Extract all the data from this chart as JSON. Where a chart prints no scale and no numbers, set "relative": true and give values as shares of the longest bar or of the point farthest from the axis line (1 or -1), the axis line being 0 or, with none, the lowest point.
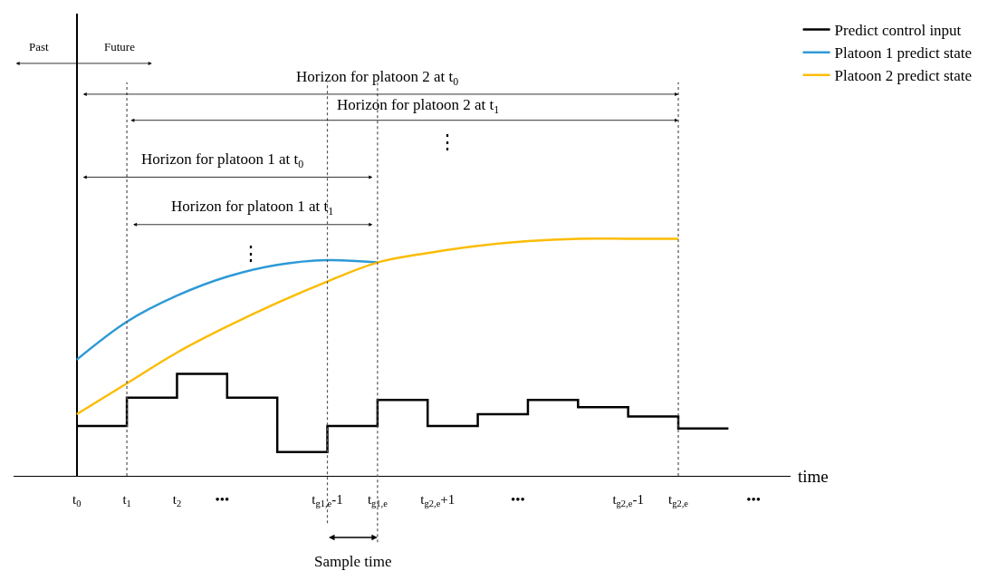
{
  "chart_data": {
    "type": "line",
    "relative": true,
    "xlabel": "time",
    "x": [
      0,
      1,
      2,
      3,
      4,
      5,
      6,
      7,
      8,
      9,
      10,
      11,
      12
    ],
    "xlim": [
      -1.26,
      14.24
    ],
    "xticks": [
      {
        "value": 0,
        "label": "t$_{0}$"
      },
      {
        "value": 1,
        "label": "t$_{1}$"
      },
      {
        "value": 2,
        "label": "t$_{2}$"
      },
      {
        "value": 2.9,
        "label": "•••"
      },
      {
        "value": 5,
        "label": "t$_{g1,e}$-1"
      },
      {
        "value": 6,
        "label": "t$_{g1,e}$"
      },
      {
        "value": 7.2,
        "label": "t$_{g2,e}$+1"
      },
      {
        "value": 8.8,
        "label": "•••"
      },
      {
        "value": 11,
        "label": "t$_{g2,e}$-1"
      },
      {
        "value": 12,
        "label": "t$_{g2,e}$"
      },
      {
        "value": 13.5,
        "label": "•••"
      }
    ],
    "series": [
      {
        "name": "Predict control input",
        "color": "#000000",
        "type": "step",
        "x": [
          0,
          1,
          2,
          3,
          4,
          5,
          6,
          7,
          8,
          9,
          10,
          11,
          12,
          13
        ],
        "values": [
          0.21,
          0.33,
          0.43,
          0.33,
          0.1,
          0.21,
          0.32,
          0.21,
          0.26,
          0.32,
          0.29,
          0.25,
          0.2,
          0.2
        ]
      },
      {
        "name": "Platoon 1 predict state",
        "color": "#2e9ad6",
        "x": [
          0,
          1,
          2,
          3,
          4,
          5,
          6
        ],
        "values": [
          0.49,
          0.65,
          0.76,
          0.84,
          0.89,
          0.91,
          0.9
        ]
      },
      {
        "name": "Platoon 2 predict state",
        "color": "#fbbc05",
        "values": [
          0.26,
          0.39,
          0.52,
          0.63,
          0.73,
          0.82,
          0.9,
          0.94,
          0.97,
          0.99,
          1.0,
          1.0,
          1.0
        ]
      }
    ],
    "ref_lines": [
      {
        "axis": "x",
        "value": 1,
        "line_style": "dotted"
      },
      {
        "axis": "x",
        "value": 5,
        "line_style": "dotted"
      },
      {
        "axis": "x",
        "value": 6,
        "line_style": "dotted"
      },
      {
        "axis": "x",
        "value": 12,
        "line_style": "dotted"
      }
    ],
    "annotations": [
      "Past",
      "Future",
      "Horizon for platoon 2 at t$_{0}$",
      "Horizon for platoon 2 at t$_{1}$",
      "Horizon for platoon 1 at t$_{0}$",
      "Horizon for platoon 1 at t$_{1}$",
      "⋮",
      "⋮",
      "Sample time"
    ],
    "legend": "top right",
    "marker": "none",
    "line_style": "solid"
  }
}
